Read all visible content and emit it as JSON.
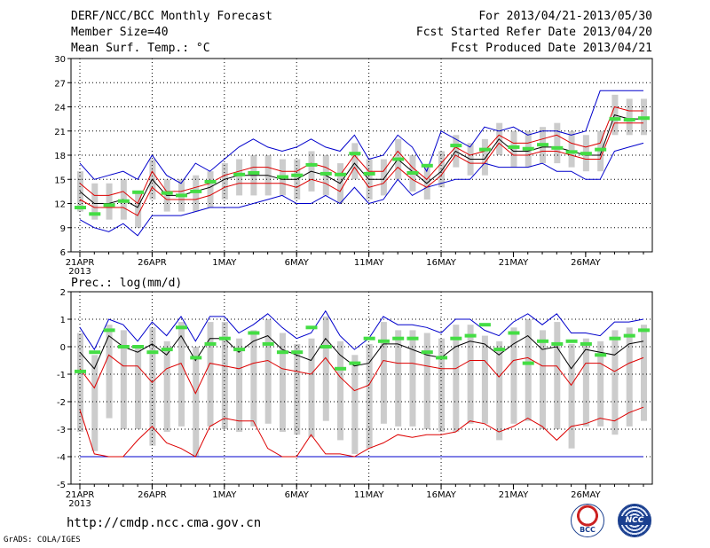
{
  "header": {
    "title": "DERF/NCC/BCC Monthly Forecast",
    "member_size": "Member Size=40",
    "variable": "Mean Surf. Temp.: °C",
    "period": "For 2013/04/21-2013/05/30",
    "started": "Fcst Started Refer Date 2013/04/20",
    "produced": "Fcst Produced Date 2013/04/21"
  },
  "footer": {
    "url": "http://cmdp.ncc.cma.gov.cn",
    "credit": "GrADS: COLA/IGES",
    "logo_left": "BCC",
    "logo_right": "NCC"
  },
  "colors": {
    "mean": "#000000",
    "spread": "#dd0000",
    "range": "#0000cc",
    "obs": "#44dd44",
    "box": "#cccccc",
    "grid": "#000000"
  },
  "chart_data": [
    {
      "type": "line",
      "title": "Mean Surf. Temp.: °C",
      "ylim": [
        6,
        30
      ],
      "yticks": [
        6,
        9,
        12,
        15,
        18,
        21,
        24,
        27,
        30
      ],
      "x_tick_days": [
        1,
        6,
        11,
        16,
        21,
        26
      ],
      "x_tick_labels": [
        "21APR",
        "26APR",
        "1MAY",
        "6MAY",
        "11MAY",
        "16MAY",
        "21MAY",
        "26MAY"
      ],
      "x_tick_labels_days": [
        1,
        6,
        11,
        16,
        21,
        26,
        31,
        36
      ],
      "year_label": "2013",
      "series": [
        {
          "name": "max",
          "values": [
            17,
            15,
            15.5,
            16,
            15,
            18,
            15.5,
            14.5,
            17,
            16,
            17.5,
            19,
            20,
            19,
            18.5,
            19,
            20,
            19,
            18.5,
            20.5,
            17.5,
            18,
            20.5,
            19,
            16,
            21,
            20,
            19,
            21.5,
            21,
            21.5,
            20.5,
            21,
            21,
            20.5,
            21,
            26,
            26,
            26,
            26
          ]
        },
        {
          "name": "upper",
          "values": [
            14.5,
            13,
            13,
            13.5,
            12,
            16,
            13.5,
            13.5,
            14,
            14.5,
            15.5,
            16,
            16.5,
            16.5,
            16,
            16,
            17,
            16.5,
            15.5,
            18,
            16,
            16,
            18.5,
            16.5,
            15,
            17,
            19,
            18,
            18.5,
            20.5,
            19.5,
            19.5,
            20,
            20.5,
            19.5,
            19,
            19.5,
            24,
            23.5,
            23.5
          ]
        },
        {
          "name": "mean",
          "values": [
            13.5,
            12,
            12,
            12.5,
            11.5,
            15,
            13,
            13,
            13.5,
            14,
            15,
            15.5,
            15.5,
            15.5,
            15,
            15,
            16,
            15.5,
            14.5,
            17,
            15,
            15,
            17.5,
            16,
            14.5,
            16,
            18.5,
            17.5,
            17.5,
            20,
            18.5,
            18.5,
            19,
            19,
            18.5,
            18,
            18,
            23,
            22.5,
            22.5
          ]
        },
        {
          "name": "lower",
          "values": [
            12.5,
            11.5,
            11.5,
            11.5,
            10.5,
            14,
            12.5,
            12.5,
            12.5,
            13,
            14,
            14.5,
            14.5,
            14.5,
            14.5,
            14,
            15,
            14.5,
            13.5,
            16.5,
            14,
            14.5,
            16.5,
            15,
            14,
            15.5,
            18,
            17,
            17,
            19.5,
            18,
            18,
            18.5,
            18.5,
            18,
            17.5,
            17.5,
            22,
            22,
            22
          ]
        },
        {
          "name": "min",
          "values": [
            10,
            9,
            8.5,
            9.5,
            8,
            10.5,
            10.5,
            10.5,
            11,
            11.5,
            11.5,
            11.5,
            12,
            12.5,
            13,
            12,
            12,
            13,
            12,
            14,
            12,
            12.5,
            15,
            13,
            14,
            14.5,
            15,
            15,
            17,
            16.5,
            16.5,
            16.5,
            17,
            16,
            16,
            15,
            15,
            18.5,
            19,
            19.5
          ]
        },
        {
          "name": "observed",
          "values": [
            11.5,
            10.7,
            11.8,
            12.3,
            13.4,
            null,
            13.3,
            13,
            13.5,
            14.7,
            null,
            15.6,
            15.8,
            null,
            15.3,
            15.5,
            16.8,
            15.7,
            15.6,
            18.2,
            15.7,
            null,
            17.5,
            15.8,
            16.7,
            null,
            19.2,
            null,
            18.7,
            null,
            19,
            18.8,
            19.3,
            18.9,
            18.4,
            18.2,
            18.7,
            22.5,
            22.4,
            22.6
          ]
        }
      ]
    },
    {
      "type": "line",
      "title": "Prec.: log(mm/d)",
      "ylim": [
        -5,
        2
      ],
      "yticks": [
        -5,
        -4,
        -3,
        -2,
        -1,
        0,
        1,
        2
      ],
      "x_tick_days": [
        1,
        6,
        11,
        16,
        21,
        26
      ],
      "x_tick_labels": [
        "21APR",
        "26APR",
        "1MAY",
        "6MAY",
        "11MAY",
        "16MAY",
        "21MAY",
        "26MAY"
      ],
      "x_tick_labels_days": [
        1,
        6,
        11,
        16,
        21,
        26,
        31,
        36
      ],
      "year_label": "2013",
      "series": [
        {
          "name": "max",
          "values": [
            0.7,
            -0.1,
            1,
            0.8,
            0.2,
            0.9,
            0.4,
            1.1,
            0.2,
            1.1,
            1.1,
            0.5,
            0.8,
            1.2,
            0.7,
            0.3,
            0.5,
            1.3,
            0.4,
            -0.1,
            0.3,
            1.1,
            0.8,
            0.8,
            0.7,
            0.5,
            1,
            1,
            0.6,
            0.4,
            0.9,
            1.2,
            0.8,
            1.2,
            0.5,
            0.5,
            0.4,
            0.9,
            0.9,
            1
          ]
        },
        {
          "name": "mean",
          "values": [
            -0.2,
            -0.8,
            0.4,
            0,
            -0.2,
            0.1,
            -0.3,
            0.4,
            -0.5,
            0.3,
            0.3,
            -0.2,
            0.2,
            0.4,
            -0.1,
            -0.3,
            -0.5,
            0.3,
            -0.3,
            -0.7,
            -0.6,
            0.1,
            0.1,
            -0.1,
            -0.3,
            -0.4,
            0,
            0.2,
            0.1,
            -0.3,
            0.1,
            0.4,
            -0.1,
            0,
            -0.8,
            -0.1,
            -0.2,
            -0.3,
            0.1,
            0.2
          ]
        },
        {
          "name": "lower",
          "values": [
            -0.8,
            -1.5,
            -0.3,
            -0.7,
            -0.7,
            -1.3,
            -0.8,
            -0.6,
            -1.7,
            -0.6,
            -0.7,
            -0.8,
            -0.6,
            -0.5,
            -0.8,
            -0.9,
            -1,
            -0.4,
            -1.1,
            -1.6,
            -1.4,
            -0.5,
            -0.6,
            -0.6,
            -0.7,
            -0.8,
            -0.8,
            -0.5,
            -0.5,
            -1.1,
            -0.5,
            -0.4,
            -0.7,
            -0.7,
            -1.4,
            -0.6,
            -0.6,
            -0.9,
            -0.6,
            -0.4
          ]
        },
        {
          "name": "lowest",
          "values": [
            -2.3,
            -3.9,
            -4,
            -4,
            -3.4,
            -2.9,
            -3.5,
            -3.7,
            -4,
            -2.9,
            -2.6,
            -2.7,
            -2.7,
            -3.7,
            -4,
            -4,
            -3.2,
            -3.9,
            -3.9,
            -4,
            -3.7,
            -3.5,
            -3.2,
            -3.3,
            -3.2,
            -3.2,
            -3.1,
            -2.7,
            -2.8,
            -3.1,
            -2.9,
            -2.6,
            -2.9,
            -3.4,
            -2.9,
            -2.8,
            -2.6,
            -2.7,
            -2.4,
            -2.2
          ]
        },
        {
          "name": "observed",
          "values": [
            -0.9,
            -0.2,
            0.6,
            0,
            0,
            -0.2,
            -0.1,
            0.7,
            -0.4,
            0.1,
            0.3,
            -0.1,
            0.5,
            0.1,
            -0.2,
            -0.2,
            0.7,
            0,
            -0.8,
            -0.6,
            0.3,
            0.2,
            0.3,
            0.3,
            -0.2,
            -0.4,
            0.3,
            0.4,
            0.8,
            -0.1,
            0.5,
            -0.6,
            0.2,
            0.1,
            0.2,
            0.1,
            -0.3,
            0.3,
            0.4,
            0.6
          ]
        },
        {
          "name": "floor",
          "values": [
            -4,
            -4,
            -4,
            -4,
            -4,
            -4,
            -4,
            -4,
            -4,
            -4,
            -4,
            -4,
            -4,
            -4,
            -4,
            -4,
            -4,
            -4,
            -4,
            -4,
            -4,
            -4,
            -4,
            -4,
            -4,
            -4,
            -4,
            -4,
            -4,
            -4,
            -4,
            -4,
            -4,
            -4,
            -4,
            -4,
            -4,
            -4,
            -4,
            -4
          ]
        }
      ]
    }
  ]
}
